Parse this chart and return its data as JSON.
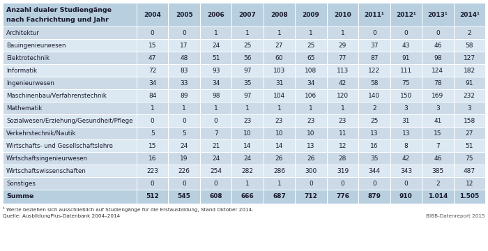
{
  "title_line1": "Anzahl dualer Studiengänge",
  "title_line2": "nach Fachrichtung und Jahr",
  "years": [
    "2004",
    "2005",
    "2006",
    "2007",
    "2008",
    "2009",
    "2010",
    "2011¹",
    "2012¹",
    "2013¹",
    "2014¹"
  ],
  "rows": [
    {
      "label": "Architektur",
      "values": [
        0,
        0,
        1,
        1,
        1,
        1,
        1,
        0,
        0,
        0,
        2
      ]
    },
    {
      "label": "Bauingenieurwesen",
      "values": [
        15,
        17,
        24,
        25,
        27,
        25,
        29,
        37,
        43,
        46,
        58
      ]
    },
    {
      "label": "Elektrotechnik",
      "values": [
        47,
        48,
        51,
        56,
        60,
        65,
        77,
        87,
        91,
        98,
        127
      ]
    },
    {
      "label": "Informatik",
      "values": [
        72,
        83,
        93,
        97,
        103,
        108,
        113,
        122,
        111,
        124,
        182
      ]
    },
    {
      "label": "Ingenieurwesen",
      "values": [
        34,
        33,
        34,
        35,
        31,
        34,
        42,
        58,
        75,
        78,
        91
      ]
    },
    {
      "label": "Maschinenbau/Verfahrenstechnik",
      "values": [
        84,
        89,
        98,
        97,
        104,
        106,
        120,
        140,
        150,
        169,
        232
      ]
    },
    {
      "label": "Mathematik",
      "values": [
        1,
        1,
        1,
        1,
        1,
        1,
        1,
        2,
        3,
        3,
        3
      ]
    },
    {
      "label": "Sozialwesen/Erziehung/Gesundheit/Pflege",
      "values": [
        0,
        0,
        0,
        23,
        23,
        23,
        23,
        25,
        31,
        41,
        158
      ]
    },
    {
      "label": "Verkehrstechnik/Nautik",
      "values": [
        5,
        5,
        7,
        10,
        10,
        10,
        11,
        13,
        13,
        15,
        27
      ]
    },
    {
      "label": "Wirtschafts- und Gesellschaftslehre",
      "values": [
        15,
        24,
        21,
        14,
        14,
        13,
        12,
        16,
        8,
        7,
        51
      ]
    },
    {
      "label": "Wirtschaftsingenieurwesen",
      "values": [
        16,
        19,
        24,
        24,
        26,
        26,
        28,
        35,
        42,
        46,
        75
      ]
    },
    {
      "label": "Wirtschaftswissenschaften",
      "values": [
        223,
        226,
        254,
        282,
        286,
        300,
        319,
        344,
        343,
        385,
        487
      ]
    },
    {
      "label": "Sonstiges",
      "values": [
        0,
        0,
        0,
        1,
        1,
        0,
        0,
        0,
        0,
        2,
        12
      ]
    }
  ],
  "summe_label": "Summe",
  "summe_values": [
    "512",
    "545",
    "608",
    "666",
    "687",
    "712",
    "776",
    "879",
    "910",
    "1.014",
    "1.505"
  ],
  "footnote": "¹ Werte beziehen sich ausschließlich auf Studiengänge für die Erstausbildung, Stand Oktober 2014.",
  "source": "Quelle: AusbildungPlus-Datenbank 2004–2014",
  "bibb": "BIBB-Datenreport 2015",
  "header_bg": "#b8cfe0",
  "row_bg_A": "#ccdae8",
  "row_bg_B": "#dce8f2",
  "summe_bg": "#b8cfe0",
  "border_color": "#ffffff",
  "text_color": "#1a1a2e"
}
